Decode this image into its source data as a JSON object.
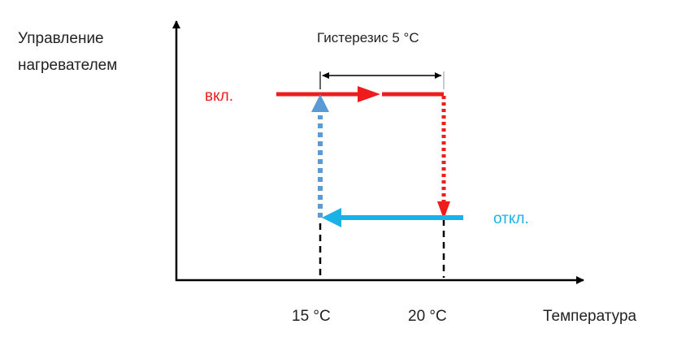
{
  "y_label": {
    "line1": "Управление",
    "line2": "нагревателем"
  },
  "x_label": "Температура",
  "hysteresis_label": "Гистерезис 5 °C",
  "state_on_label": "вкл.",
  "state_off_label": "откл.",
  "tick_labels": [
    "15 °C",
    "20 °C"
  ],
  "colors": {
    "axis": "#000000",
    "on": "#ee1c1c",
    "off": "#1ab2e6",
    "rise": "#5b9bd5",
    "text": "#222222"
  }
}
